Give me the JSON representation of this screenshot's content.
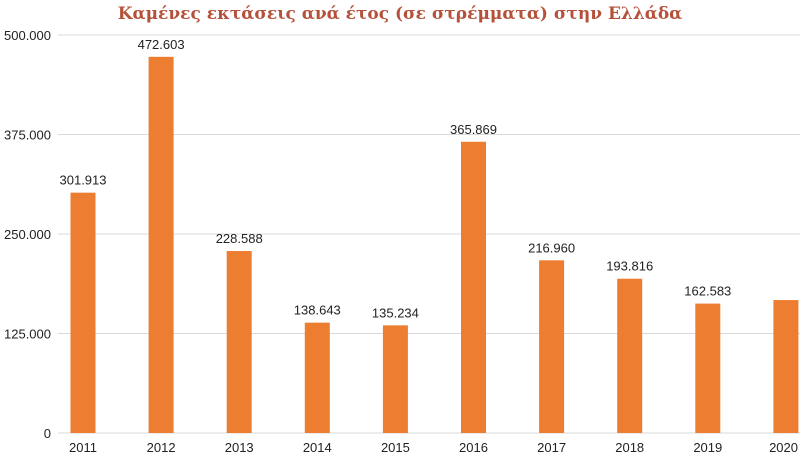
{
  "chart_data": {
    "type": "bar",
    "title": "Καμένες εκτάσεις ανά έτος (σε στρέμματα) στην Ελλάδα",
    "categories": [
      "2011",
      "2012",
      "2013",
      "2014",
      "2015",
      "2016",
      "2017",
      "2018",
      "2019",
      "2020"
    ],
    "values": [
      301913,
      472603,
      228588,
      138643,
      135234,
      365869,
      216960,
      193816,
      162583,
      167000
    ],
    "data_labels": [
      "301.913",
      "472.603",
      "228.588",
      "138.643",
      "135.234",
      "365.869",
      "216.960",
      "193.816",
      "162.583",
      ""
    ],
    "y_ticks": [
      0,
      125000,
      250000,
      375000,
      500000
    ],
    "y_tick_labels": [
      "0",
      "125.000",
      "250.000",
      "375.000",
      "500.000"
    ],
    "ylim": [
      0,
      500000
    ],
    "xlabel": "",
    "ylabel": "",
    "grid": true,
    "legend": "none",
    "bar_color": "#ed7d31",
    "grid_color": "#d9d9d9"
  }
}
